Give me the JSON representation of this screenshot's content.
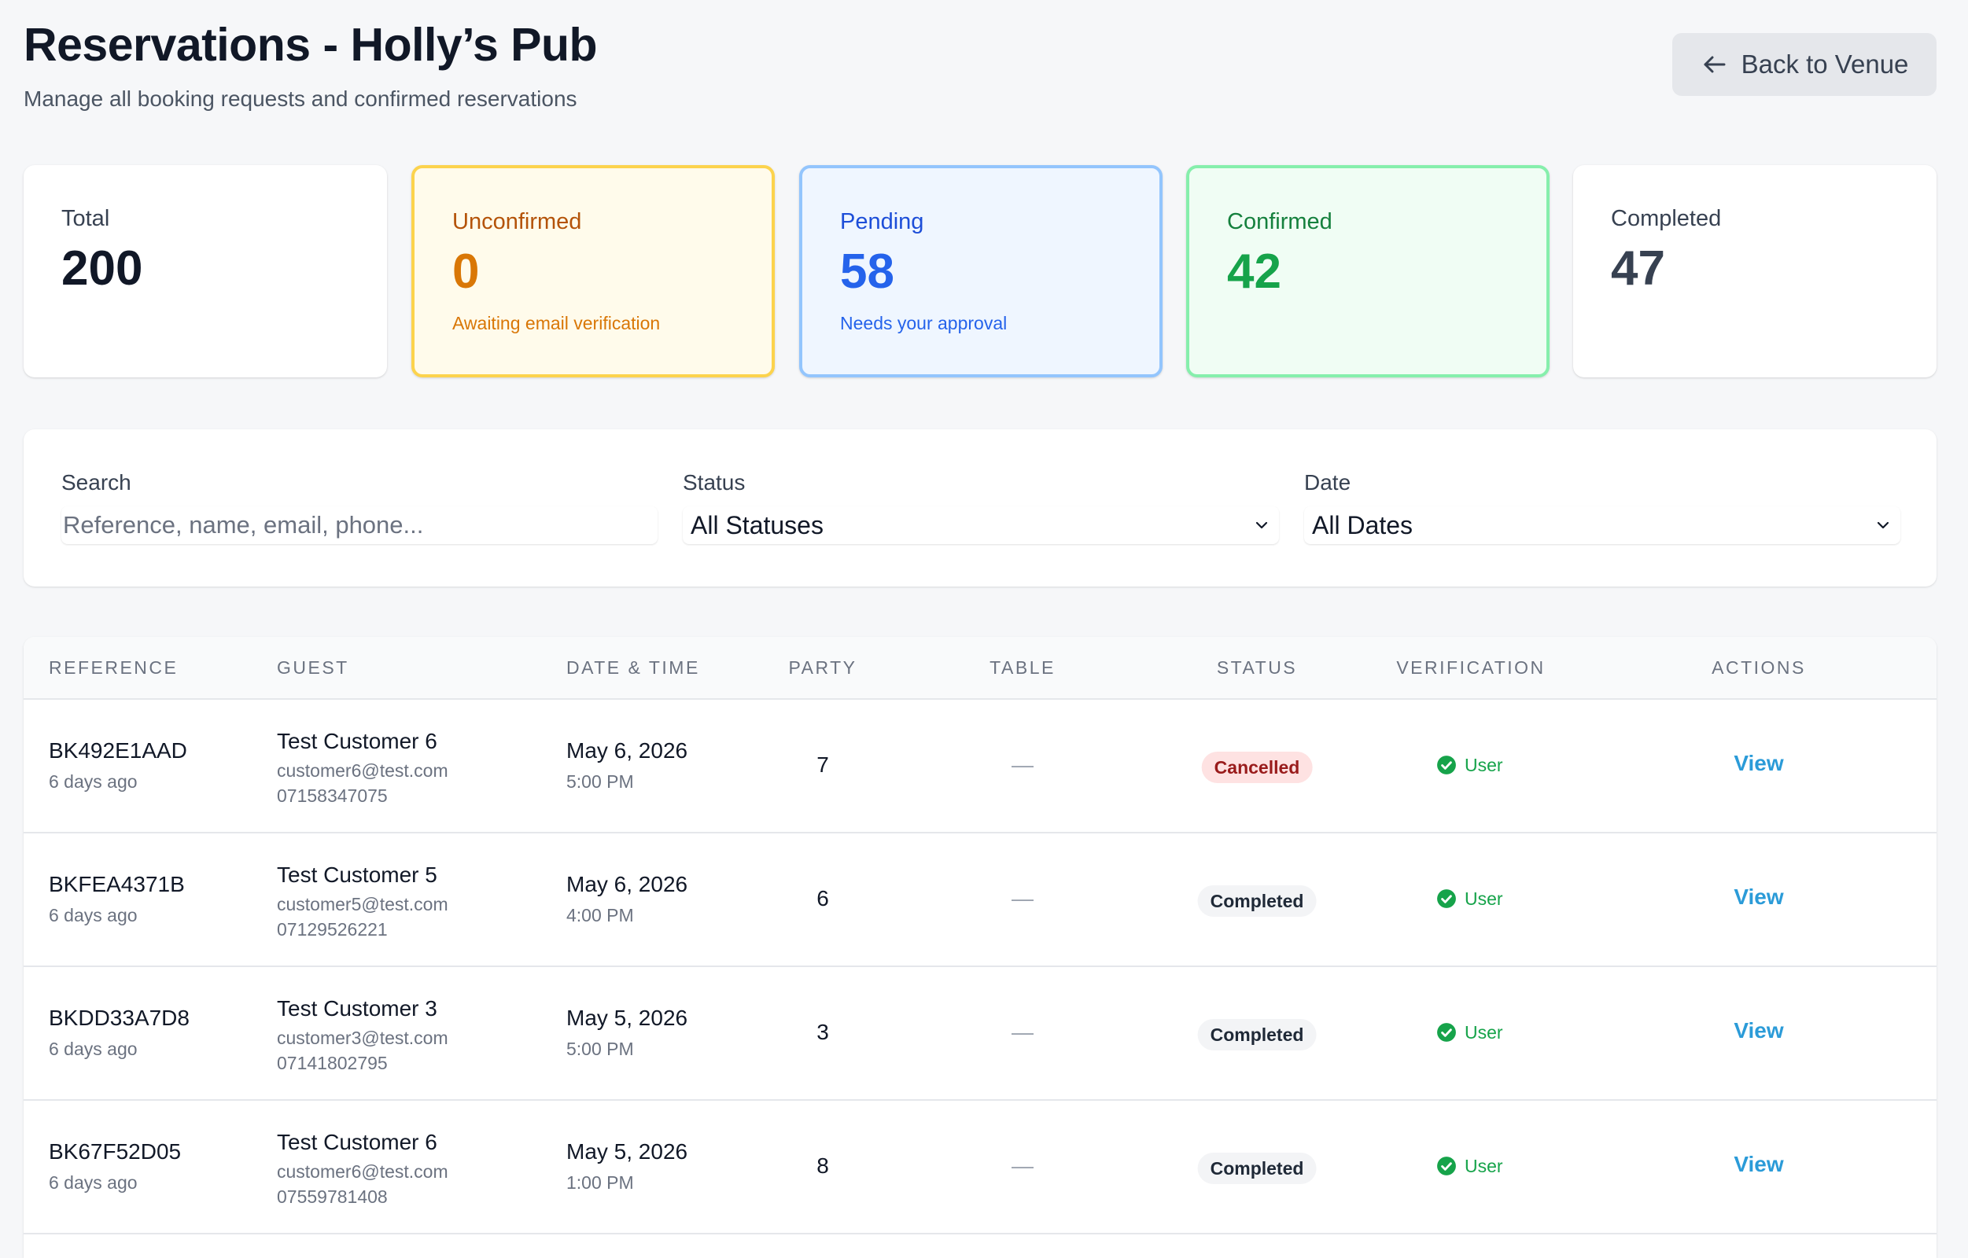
{
  "header": {
    "title": "Reservations - Holly’s Pub",
    "subtitle": "Manage all booking requests and confirmed reservations",
    "back_button_label": "Back to Venue"
  },
  "stats": {
    "total": {
      "label": "Total",
      "value": "200"
    },
    "unconfirmed": {
      "label": "Unconfirmed",
      "value": "0",
      "note": "Awaiting email verification"
    },
    "pending": {
      "label": "Pending",
      "value": "58",
      "note": "Needs your approval"
    },
    "confirmed": {
      "label": "Confirmed",
      "value": "42"
    },
    "completed": {
      "label": "Completed",
      "value": "47"
    }
  },
  "filters": {
    "search": {
      "label": "Search",
      "placeholder": "Reference, name, email, phone...",
      "value": ""
    },
    "status": {
      "label": "Status",
      "value": "All Statuses"
    },
    "date": {
      "label": "Date",
      "value": "All Dates"
    }
  },
  "table": {
    "columns": {
      "reference": "REFERENCE",
      "guest": "GUEST",
      "datetime": "DATE & TIME",
      "party": "PARTY",
      "table": "TABLE",
      "status": "STATUS",
      "verification": "VERIFICATION",
      "actions": "ACTIONS"
    },
    "rows": [
      {
        "reference": "BK492E1AAD",
        "created": "6 days ago",
        "guest_name": "Test Customer 6",
        "guest_email": "customer6@test.com",
        "guest_phone": "07158347075",
        "date": "May 6, 2026",
        "time": "5:00 PM",
        "party": "7",
        "table": "—",
        "status": "Cancelled",
        "verification": "User",
        "action": "View"
      },
      {
        "reference": "BKFEA4371B",
        "created": "6 days ago",
        "guest_name": "Test Customer 5",
        "guest_email": "customer5@test.com",
        "guest_phone": "07129526221",
        "date": "May 6, 2026",
        "time": "4:00 PM",
        "party": "6",
        "table": "—",
        "status": "Completed",
        "verification": "User",
        "action": "View"
      },
      {
        "reference": "BKDD33A7D8",
        "created": "6 days ago",
        "guest_name": "Test Customer 3",
        "guest_email": "customer3@test.com",
        "guest_phone": "07141802795",
        "date": "May 5, 2026",
        "time": "5:00 PM",
        "party": "3",
        "table": "—",
        "status": "Completed",
        "verification": "User",
        "action": "View"
      },
      {
        "reference": "BK67F52D05",
        "created": "6 days ago",
        "guest_name": "Test Customer 6",
        "guest_email": "customer6@test.com",
        "guest_phone": "07559781408",
        "date": "May 5, 2026",
        "time": "1:00 PM",
        "party": "8",
        "table": "—",
        "status": "Completed",
        "verification": "User",
        "action": "View"
      }
    ]
  },
  "icons": {
    "back": "arrow-left-icon",
    "select": "chevron-down-icon",
    "verified": "check-circle-icon"
  },
  "colors": {
    "unconfirmed_accent": "#d97706",
    "pending_accent": "#2563eb",
    "confirmed_accent": "#16a34a",
    "link": "#2b9bd8",
    "cancelled_badge_bg": "#fee2e2",
    "cancelled_badge_text": "#991b1b"
  }
}
